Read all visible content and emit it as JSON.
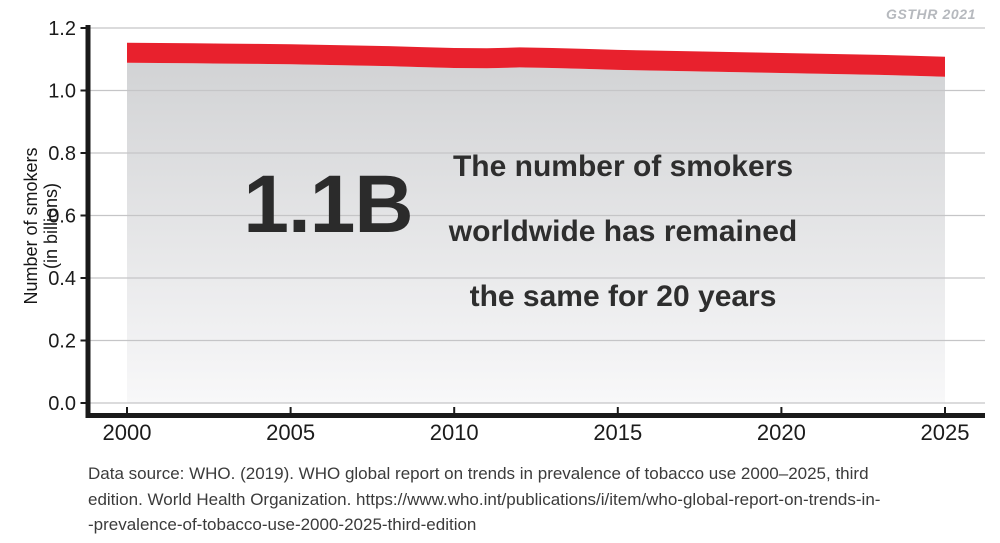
{
  "watermark": "GSTHR 2021",
  "annotation": {
    "big_value": "1.1B",
    "lines": [
      "The number of smokers",
      "worldwide has remained",
      "the same for 20 years"
    ]
  },
  "y_axis_title": {
    "line1": "Number of smokers",
    "line2": "(in billions)"
  },
  "source": {
    "line1": "Data source: WHO. (2019). WHO global report on trends in prevalence of tobacco use 2000–2025, third",
    "line2": "edition. World Health Organization. https://www.who.int/publications/i/item/who-global-report-on-trends-in-",
    "line3": "-prevalence-of-tobacco-use-2000-2025-third-edition"
  },
  "chart_data": {
    "type": "area",
    "title": "The number of smokers worldwide has remained the same for 20 years",
    "xlabel": "",
    "ylabel": "Number of smokers (in billions)",
    "x": [
      2000,
      2001,
      2002,
      2003,
      2004,
      2005,
      2006,
      2007,
      2008,
      2009,
      2010,
      2011,
      2012,
      2013,
      2014,
      2015,
      2016,
      2017,
      2018,
      2019,
      2020,
      2021,
      2022,
      2023,
      2024,
      2025
    ],
    "series": [
      {
        "name": "Number of smokers (billions)",
        "values": [
          1.121,
          1.12,
          1.119,
          1.118,
          1.117,
          1.116,
          1.114,
          1.112,
          1.11,
          1.107,
          1.104,
          1.103,
          1.106,
          1.104,
          1.101,
          1.098,
          1.096,
          1.094,
          1.092,
          1.09,
          1.088,
          1.086,
          1.084,
          1.082,
          1.079,
          1.076
        ]
      }
    ],
    "band_thickness": 0.064,
    "ylim": [
      0,
      1.2
    ],
    "yticks": [
      0.0,
      0.2,
      0.4,
      0.6,
      0.8,
      1.0,
      1.2
    ],
    "xticks": [
      2000,
      2005,
      2010,
      2015,
      2020,
      2025
    ],
    "grid": true,
    "legend": "none",
    "colors": {
      "band": "#e8212d",
      "area_top": "#d2d3d5",
      "area_bottom": "#f8f8f9",
      "gridline": "#c5c5c7",
      "axis": "#1a1a1a",
      "tick_label": "#1b1b1b"
    }
  }
}
